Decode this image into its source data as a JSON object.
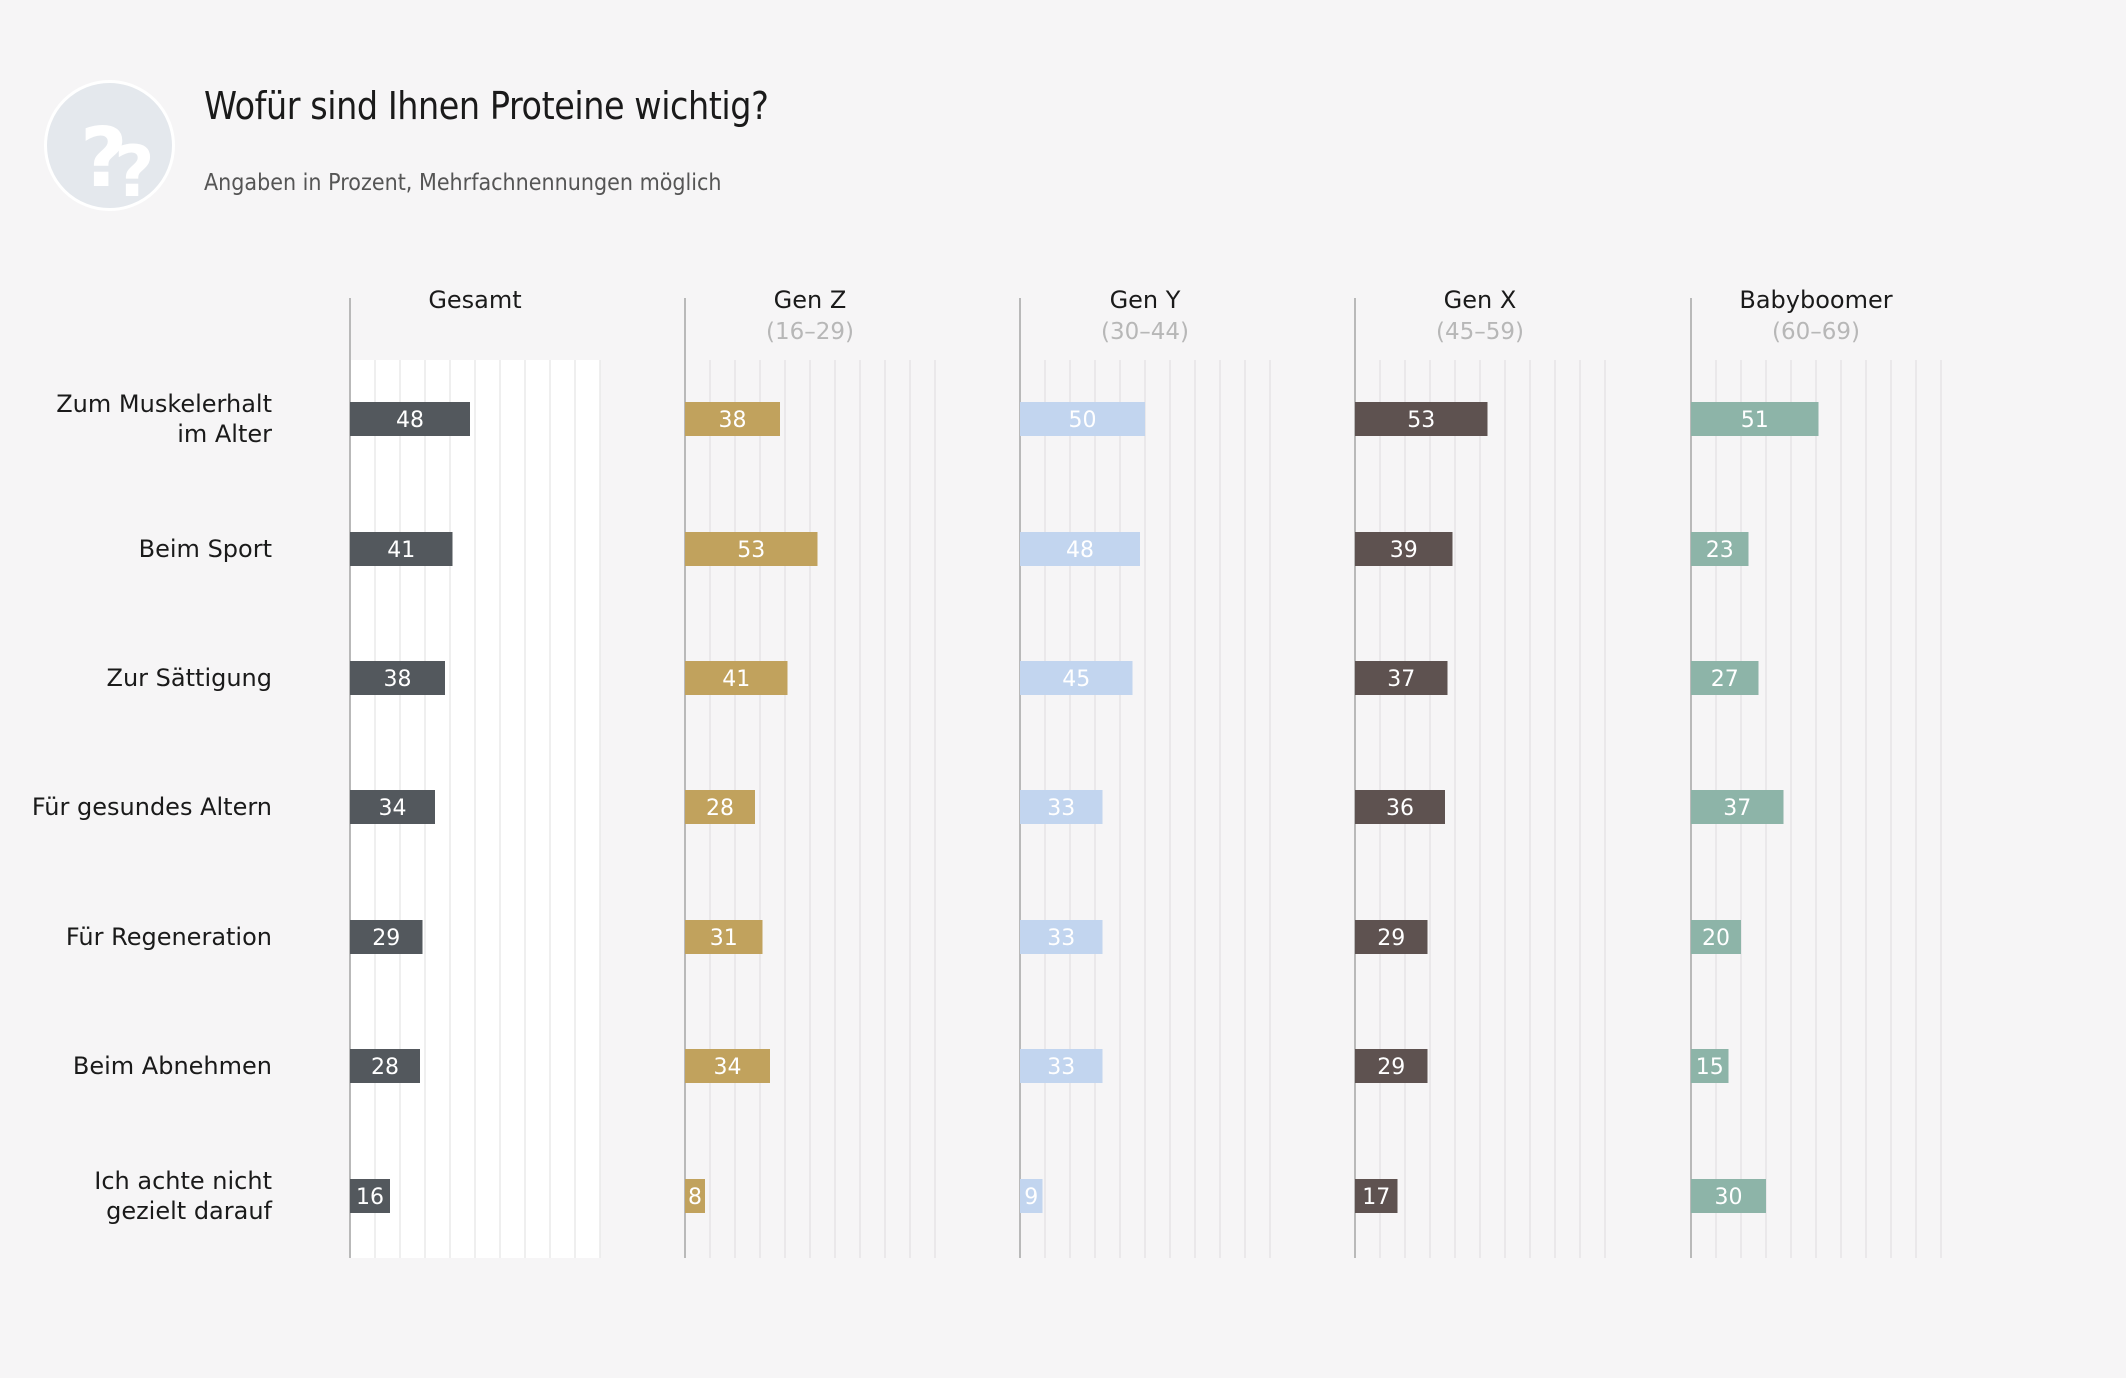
{
  "title": "Wofür sind Ihnen Proteine wichtig?",
  "subtitle": "Angaben in Prozent, Mehrfachnennungen möglich",
  "logo_icon": "question-marks-icon",
  "chart_data": {
    "type": "bar",
    "orientation": "horizontal",
    "title": "Wofür sind Ihnen Proteine wichtig?",
    "subtitle": "Angaben in Prozent, Mehrfachnennungen möglich",
    "xlim": [
      0,
      100
    ],
    "grid": true,
    "categories": [
      "Zum Muskelerhalt im Alter",
      "Beim Sport",
      "Zur Sättigung",
      "Für gesundes Altern",
      "Für Regeneration",
      "Beim Abnehmen",
      "Ich achte nicht gezielt darauf"
    ],
    "category_lines": [
      [
        "Zum Muskelerhalt",
        "im Alter"
      ],
      [
        "Beim Sport"
      ],
      [
        "Zur Sättigung"
      ],
      [
        "Für gesundes Altern"
      ],
      [
        "Für Regeneration"
      ],
      [
        "Beim Abnehmen"
      ],
      [
        "Ich achte nicht",
        "gezielt darauf"
      ]
    ],
    "series": [
      {
        "name": "Gesamt",
        "range": "",
        "color": "#53585d",
        "values": [
          48,
          41,
          38,
          34,
          29,
          28,
          16
        ]
      },
      {
        "name": "Gen Z",
        "range": "(16–29)",
        "color": "#c1a25d",
        "values": [
          38,
          53,
          41,
          28,
          31,
          34,
          8
        ]
      },
      {
        "name": "Gen Y",
        "range": "(30–44)",
        "color": "#c2d5ef",
        "values": [
          50,
          48,
          45,
          33,
          33,
          33,
          9
        ]
      },
      {
        "name": "Gen X",
        "range": "(45–59)",
        "color": "#5e5250",
        "values": [
          53,
          39,
          37,
          36,
          29,
          29,
          17
        ]
      },
      {
        "name": "Babyboomer",
        "range": "(60–69)",
        "color": "#8db4a8",
        "values": [
          51,
          23,
          27,
          37,
          20,
          15,
          30
        ]
      }
    ]
  }
}
